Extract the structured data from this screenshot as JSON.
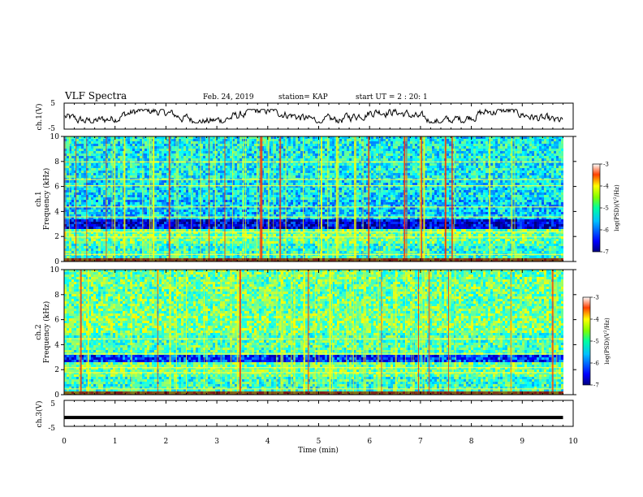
{
  "header": {
    "title": "VLF Spectra",
    "date": "Feb. 24, 2019",
    "station": "station= KAP",
    "start": "start  UT =  2 : 20: 1"
  },
  "chart_data": [
    {
      "type": "line",
      "panel": "ch1-waveform",
      "ylabel": "ch.1(V)",
      "ylim": [
        -5,
        5
      ],
      "yticks": [
        "5",
        "-5"
      ],
      "xlim": [
        0,
        10
      ],
      "series": [
        {
          "values": "continuous noisy waveform oscillating roughly between -2 and +2 V across 0–9.8 min"
        }
      ]
    },
    {
      "type": "heatmap",
      "panel": "ch1-spectrogram",
      "ylabel": "ch.1\nFrequency (kHz)",
      "ylim": [
        0,
        10
      ],
      "yticks": [
        "0",
        "2",
        "4",
        "6",
        "8",
        "10"
      ],
      "xlim": [
        0,
        10
      ],
      "data_extent_min": 9.8,
      "colorbar": {
        "label": "log(PSD)(V²/Hz)",
        "range": [
          -7,
          -3
        ],
        "ticks": [
          "-3",
          "-4",
          "-5",
          "-6",
          "-7"
        ]
      }
    },
    {
      "type": "heatmap",
      "panel": "ch2-spectrogram",
      "ylabel": "ch.2\nFrequency (kHz)",
      "ylim": [
        0,
        10
      ],
      "yticks": [
        "0",
        "2",
        "4",
        "6",
        "8",
        "10"
      ],
      "xlim": [
        0,
        10
      ],
      "data_extent_min": 9.8,
      "colorbar": {
        "label": "log(PSD)(V²/Hz)",
        "range": [
          -7,
          -3
        ],
        "ticks": [
          "-3",
          "-4",
          "-5",
          "-6",
          "-7"
        ]
      }
    },
    {
      "type": "line",
      "panel": "ch3-waveform",
      "ylabel": "ch.3(V)",
      "ylim": [
        -5,
        5
      ],
      "yticks": [
        "5",
        "-5"
      ],
      "xlim": [
        0,
        10
      ],
      "series": [
        {
          "values": "flat line at about -1.6 V across 0–9.8 min"
        }
      ]
    }
  ],
  "xaxis": {
    "label": "Time (min)",
    "ticks": [
      "0",
      "1",
      "2",
      "3",
      "4",
      "5",
      "6",
      "7",
      "8",
      "9",
      "10"
    ]
  },
  "colors": {
    "low": "#00007f",
    "mid_low": "#0050ff",
    "mid": "#00ffbf",
    "mid_high": "#80ff00",
    "high": "#ffff00",
    "peak": "#ff0000"
  }
}
